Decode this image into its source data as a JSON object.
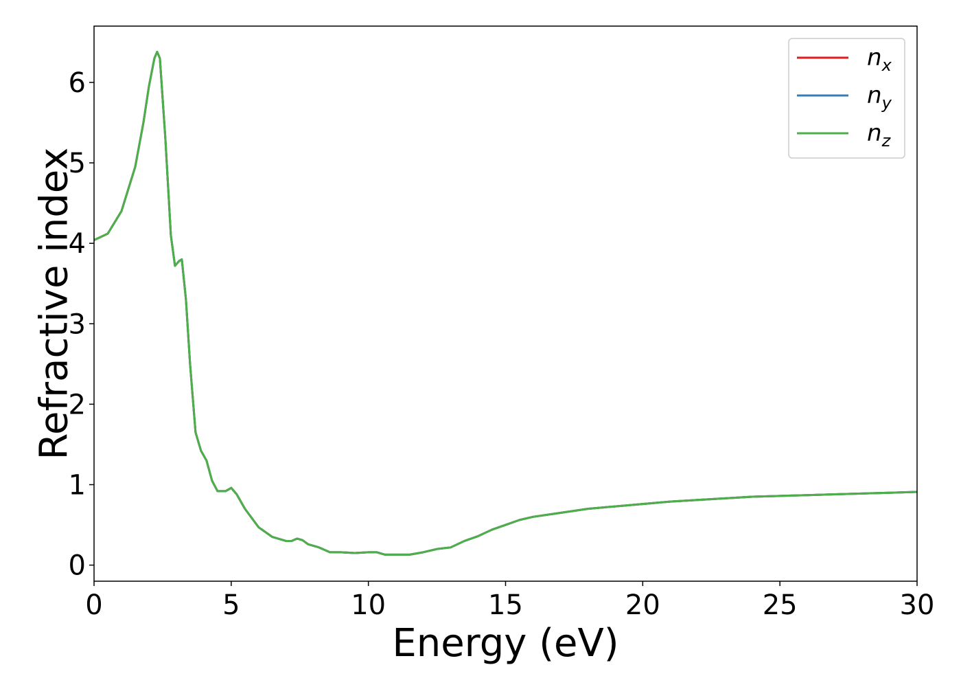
{
  "chart_data": {
    "type": "line",
    "title": "",
    "xlabel": "Energy (eV)",
    "ylabel": "Refractive index",
    "xlim": [
      0,
      30
    ],
    "ylim": [
      -0.2,
      6.7
    ],
    "xticks": [
      0,
      5,
      10,
      15,
      20,
      25,
      30
    ],
    "yticks": [
      0,
      1,
      2,
      3,
      4,
      5,
      6
    ],
    "grid": false,
    "legend_position": "top-right",
    "series": [
      {
        "name": "n",
        "subscript": "x",
        "color": "#e41a1c",
        "x": [
          0,
          0.5,
          1.0,
          1.5,
          1.8,
          2.0,
          2.2,
          2.3,
          2.4,
          2.6,
          2.8,
          2.95,
          3.1,
          3.2,
          3.35,
          3.5,
          3.7,
          3.9,
          4.1,
          4.3,
          4.5,
          4.8,
          5.0,
          5.2,
          5.5,
          6.0,
          6.5,
          7.0,
          7.2,
          7.4,
          7.6,
          7.8,
          8.2,
          8.6,
          9.0,
          9.5,
          10.0,
          10.3,
          10.6,
          11.0,
          11.5,
          12.0,
          12.5,
          13.0,
          13.5,
          14.0,
          14.5,
          15.0,
          15.5,
          16.0,
          17.0,
          18.0,
          19.0,
          20.0,
          21.0,
          22.0,
          23.0,
          24.0,
          25.0,
          26.0,
          27.0,
          28.0,
          29.0,
          30.0
        ],
        "y": [
          4.04,
          4.12,
          4.4,
          4.95,
          5.5,
          5.95,
          6.3,
          6.38,
          6.3,
          5.3,
          4.1,
          3.72,
          3.78,
          3.8,
          3.3,
          2.5,
          1.65,
          1.42,
          1.3,
          1.05,
          0.92,
          0.92,
          0.96,
          0.88,
          0.7,
          0.47,
          0.35,
          0.3,
          0.3,
          0.33,
          0.31,
          0.26,
          0.22,
          0.16,
          0.16,
          0.15,
          0.16,
          0.16,
          0.13,
          0.13,
          0.13,
          0.16,
          0.2,
          0.22,
          0.3,
          0.36,
          0.44,
          0.5,
          0.56,
          0.6,
          0.65,
          0.7,
          0.73,
          0.76,
          0.79,
          0.81,
          0.83,
          0.85,
          0.86,
          0.87,
          0.88,
          0.89,
          0.9,
          0.91
        ]
      },
      {
        "name": "n",
        "subscript": "y",
        "color": "#377eb8",
        "x": [
          0,
          0.5,
          1.0,
          1.5,
          1.8,
          2.0,
          2.2,
          2.3,
          2.4,
          2.6,
          2.8,
          2.95,
          3.1,
          3.2,
          3.35,
          3.5,
          3.7,
          3.9,
          4.1,
          4.3,
          4.5,
          4.8,
          5.0,
          5.2,
          5.5,
          6.0,
          6.5,
          7.0,
          7.2,
          7.4,
          7.6,
          7.8,
          8.2,
          8.6,
          9.0,
          9.5,
          10.0,
          10.3,
          10.6,
          11.0,
          11.5,
          12.0,
          12.5,
          13.0,
          13.5,
          14.0,
          14.5,
          15.0,
          15.5,
          16.0,
          17.0,
          18.0,
          19.0,
          20.0,
          21.0,
          22.0,
          23.0,
          24.0,
          25.0,
          26.0,
          27.0,
          28.0,
          29.0,
          30.0
        ],
        "y": [
          4.04,
          4.12,
          4.4,
          4.95,
          5.5,
          5.95,
          6.3,
          6.38,
          6.3,
          5.3,
          4.1,
          3.72,
          3.78,
          3.8,
          3.3,
          2.5,
          1.65,
          1.42,
          1.3,
          1.05,
          0.92,
          0.92,
          0.96,
          0.88,
          0.7,
          0.47,
          0.35,
          0.3,
          0.3,
          0.33,
          0.31,
          0.26,
          0.22,
          0.16,
          0.16,
          0.15,
          0.16,
          0.16,
          0.13,
          0.13,
          0.13,
          0.16,
          0.2,
          0.22,
          0.3,
          0.36,
          0.44,
          0.5,
          0.56,
          0.6,
          0.65,
          0.7,
          0.73,
          0.76,
          0.79,
          0.81,
          0.83,
          0.85,
          0.86,
          0.87,
          0.88,
          0.89,
          0.9,
          0.91
        ]
      },
      {
        "name": "n",
        "subscript": "z",
        "color": "#4daf4a",
        "x": [
          0,
          0.5,
          1.0,
          1.5,
          1.8,
          2.0,
          2.2,
          2.3,
          2.4,
          2.6,
          2.8,
          2.95,
          3.1,
          3.2,
          3.35,
          3.5,
          3.7,
          3.9,
          4.1,
          4.3,
          4.5,
          4.8,
          5.0,
          5.2,
          5.5,
          6.0,
          6.5,
          7.0,
          7.2,
          7.4,
          7.6,
          7.8,
          8.2,
          8.6,
          9.0,
          9.5,
          10.0,
          10.3,
          10.6,
          11.0,
          11.5,
          12.0,
          12.5,
          13.0,
          13.5,
          14.0,
          14.5,
          15.0,
          15.5,
          16.0,
          17.0,
          18.0,
          19.0,
          20.0,
          21.0,
          22.0,
          23.0,
          24.0,
          25.0,
          26.0,
          27.0,
          28.0,
          29.0,
          30.0
        ],
        "y": [
          4.04,
          4.12,
          4.4,
          4.95,
          5.5,
          5.95,
          6.3,
          6.38,
          6.3,
          5.3,
          4.1,
          3.72,
          3.78,
          3.8,
          3.3,
          2.5,
          1.65,
          1.42,
          1.3,
          1.05,
          0.92,
          0.92,
          0.96,
          0.88,
          0.7,
          0.47,
          0.35,
          0.3,
          0.3,
          0.33,
          0.31,
          0.26,
          0.22,
          0.16,
          0.16,
          0.15,
          0.16,
          0.16,
          0.13,
          0.13,
          0.13,
          0.16,
          0.2,
          0.22,
          0.3,
          0.36,
          0.44,
          0.5,
          0.56,
          0.6,
          0.65,
          0.7,
          0.73,
          0.76,
          0.79,
          0.81,
          0.83,
          0.85,
          0.86,
          0.87,
          0.88,
          0.89,
          0.9,
          0.91
        ]
      }
    ]
  }
}
